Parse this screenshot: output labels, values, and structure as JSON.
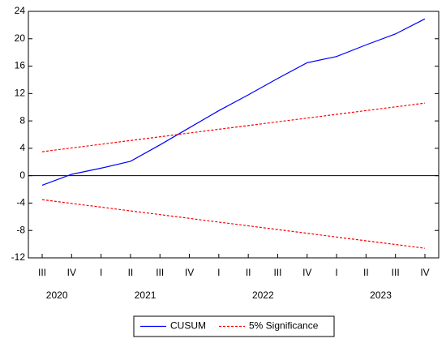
{
  "chart_data": {
    "type": "line",
    "x": [
      "III",
      "IV",
      "I",
      "II",
      "III",
      "IV",
      "I",
      "II",
      "III",
      "IV",
      "I",
      "II",
      "III",
      "IV"
    ],
    "years": [
      {
        "label": "2020",
        "quarters": 2
      },
      {
        "label": "2021",
        "quarters": 4
      },
      {
        "label": "2022",
        "quarters": 4
      },
      {
        "label": "2023",
        "quarters": 4
      }
    ],
    "series": [
      {
        "name": "CUSUM",
        "color": "#0000ff",
        "style": "solid",
        "values": [
          -1.4,
          0.2,
          1.1,
          2.1,
          4.5,
          7.0,
          9.5,
          11.8,
          14.2,
          16.5,
          17.4,
          19.1,
          20.7,
          22.9
        ]
      },
      {
        "name": "5% Significance",
        "color": "#ff0000",
        "style": "dashed",
        "values": [
          3.5,
          4.05,
          4.59,
          5.14,
          5.68,
          6.23,
          6.78,
          7.32,
          7.87,
          8.41,
          8.96,
          9.51,
          10.05,
          10.6
        ],
        "lower_values": [
          -3.5,
          -4.05,
          -4.59,
          -5.14,
          -5.68,
          -6.23,
          -6.78,
          -7.32,
          -7.87,
          -8.41,
          -8.96,
          -9.51,
          -10.05,
          -10.6
        ]
      }
    ],
    "ylim": [
      -12,
      24
    ],
    "yticks": [
      -12,
      -8,
      -4,
      0,
      4,
      8,
      12,
      16,
      20,
      24
    ],
    "legend": "bottom"
  }
}
